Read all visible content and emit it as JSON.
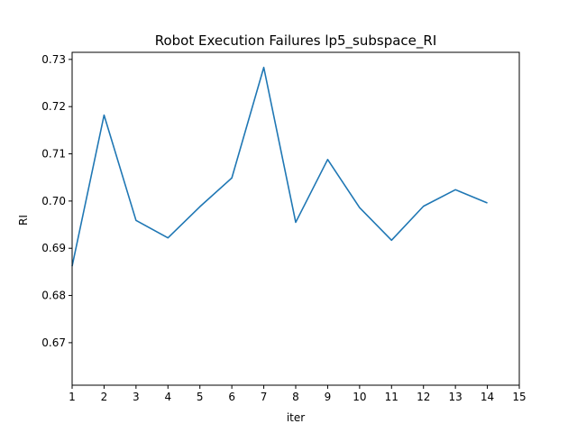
{
  "chart_data": {
    "type": "line",
    "title": "Robot Execution Failures lp5_subspace_RI",
    "xlabel": "iter",
    "ylabel": "RI",
    "xlim": [
      1,
      15
    ],
    "ylim": [
      0.661,
      0.7315
    ],
    "xticks": [
      1,
      2,
      3,
      4,
      5,
      6,
      7,
      8,
      9,
      10,
      11,
      12,
      13,
      14,
      15
    ],
    "yticks": [
      0.67,
      0.68,
      0.69,
      0.7,
      0.71,
      0.72,
      0.73
    ],
    "ytick_labels": [
      "0.67",
      "0.68",
      "0.69",
      "0.70",
      "0.71",
      "0.72",
      "0.73"
    ],
    "grid": false,
    "series": [
      {
        "color": "#1f77b4",
        "x": [
          1,
          2,
          3,
          4,
          5,
          6,
          7,
          8,
          9,
          10,
          11,
          12,
          13,
          14
        ],
        "y": [
          0.6862,
          0.7182,
          0.6959,
          0.6922,
          0.6988,
          0.7049,
          0.7283,
          0.6955,
          0.7088,
          0.6986,
          0.6917,
          0.6989,
          0.7024,
          0.6996
        ]
      }
    ]
  }
}
